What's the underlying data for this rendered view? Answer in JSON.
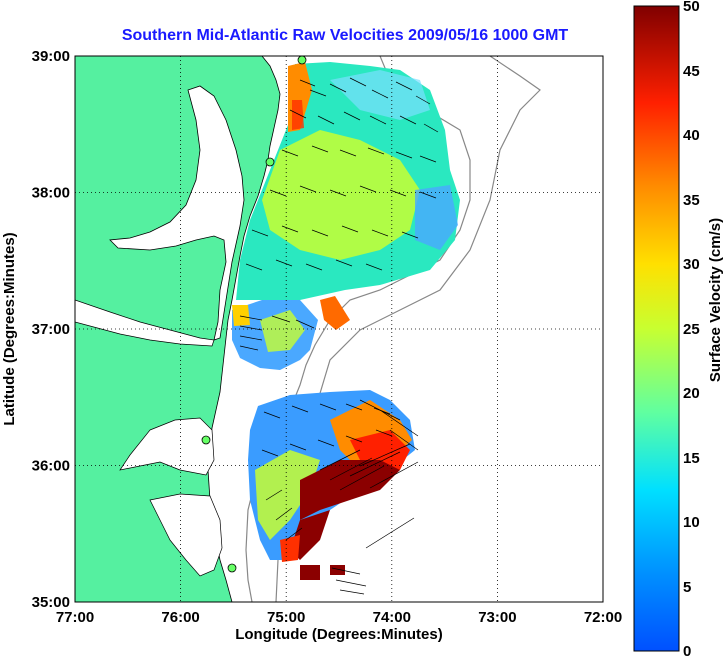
{
  "title": "Southern Mid-Atlantic Raw Velocities 2009/05/16 1000 GMT",
  "xlabel": "Longitude (Degrees:Minutes)",
  "ylabel": "Latitude (Degrees:Minutes)",
  "x_ticks": [
    "77:00",
    "76:00",
    "75:00",
    "74:00",
    "73:00",
    "72:00"
  ],
  "y_ticks": [
    "39:00",
    "38:00",
    "37:00",
    "36:00",
    "35:00"
  ],
  "colorbar": {
    "label": "Surface Velocity (cm/s)",
    "ticks": [
      "50",
      "45",
      "40",
      "35",
      "30",
      "25",
      "20",
      "15",
      "10",
      "5",
      "0"
    ]
  },
  "colors": {
    "land": "#55f0a0",
    "title": "#1a1aff",
    "grid": "#000000"
  },
  "chart_data": {
    "type": "heatmap",
    "title": "Southern Mid-Atlantic Raw Velocities 2009/05/16 1000 GMT",
    "xlabel": "Longitude (Degrees:Minutes)",
    "ylabel": "Latitude (Degrees:Minutes)",
    "xlim": [
      -77,
      -72
    ],
    "ylim": [
      35,
      39
    ],
    "grid": true,
    "colorbar_range": [
      0,
      50
    ],
    "colorbar_label": "Surface Velocity (cm/s)"
  }
}
